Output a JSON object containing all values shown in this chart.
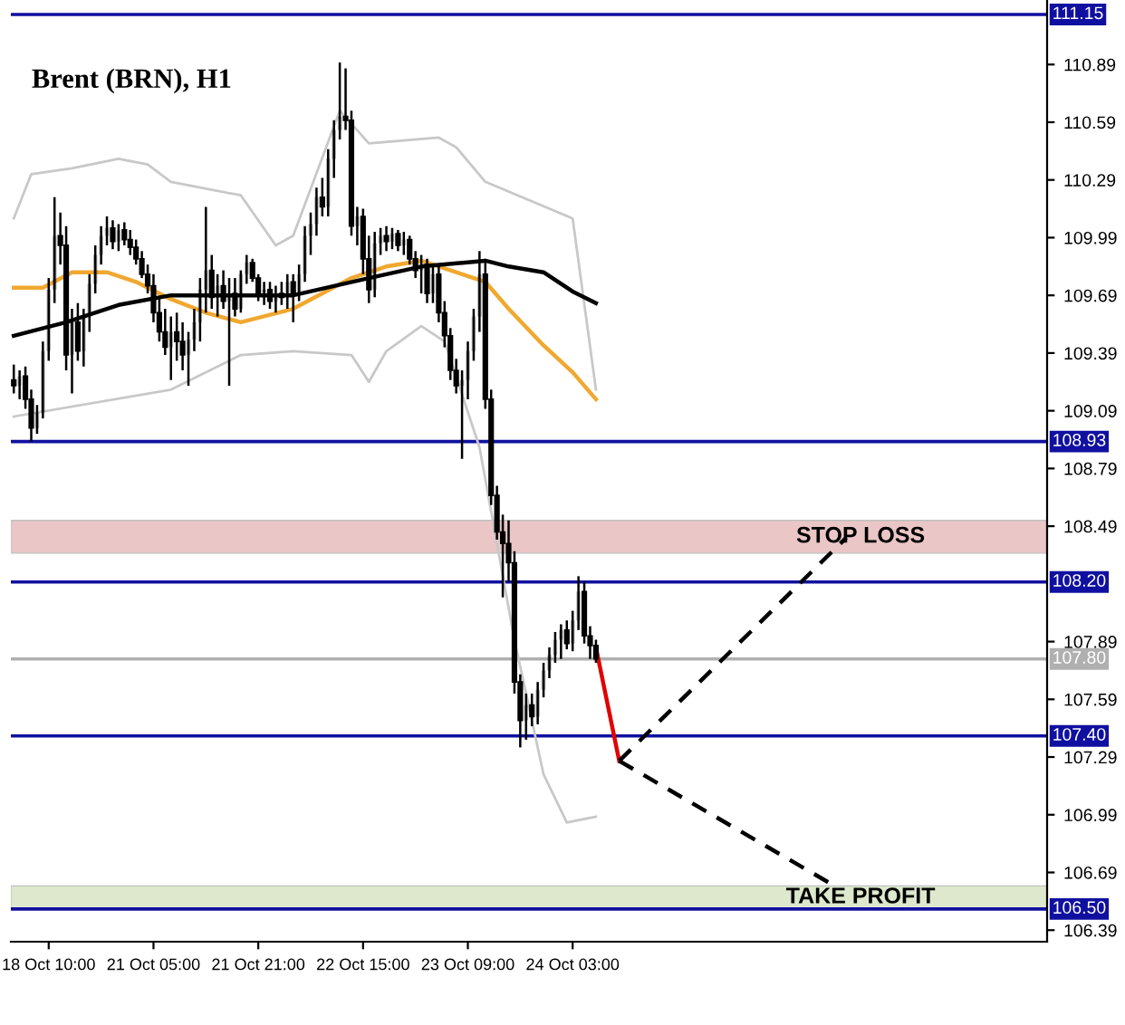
{
  "chart_data": {
    "type": "candlestick",
    "title": "Brent (BRN), H1",
    "categories": [
      null,
      null,
      null,
      null,
      null,
      null,
      "18 Oct 10:00",
      null,
      null,
      null,
      null,
      null,
      null,
      null,
      null,
      null,
      null,
      null,
      null,
      null,
      null,
      null,
      null,
      null,
      "21 Oct 05:00",
      null,
      null,
      null,
      null,
      null,
      null,
      null,
      null,
      null,
      null,
      null,
      null,
      null,
      null,
      null,
      null,
      null,
      "21 Oct 21:00",
      null,
      null,
      null,
      null,
      null,
      null,
      null,
      null,
      null,
      null,
      null,
      null,
      null,
      null,
      null,
      null,
      null,
      "22 Oct 15:00",
      null,
      null,
      null,
      null,
      null,
      null,
      null,
      null,
      null,
      null,
      null,
      null,
      null,
      null,
      null,
      null,
      null,
      "23 Oct 09:00",
      null,
      null,
      null,
      null,
      null,
      null,
      null,
      null,
      null,
      null,
      null,
      null,
      null,
      null,
      null,
      null,
      null,
      "24 Oct 03:00",
      null,
      null,
      null,
      null,
      null,
      null,
      null,
      null,
      null,
      null,
      null,
      null,
      null,
      null,
      null,
      null,
      null,
      null,
      null,
      null,
      null,
      null,
      null,
      null,
      null,
      null,
      null,
      null,
      null,
      null,
      null,
      null,
      null,
      null,
      null,
      null,
      null,
      null,
      null,
      null,
      null,
      null,
      null,
      null,
      null,
      null,
      null,
      null,
      null,
      null,
      null,
      null,
      null,
      null,
      null,
      null,
      null,
      null,
      null,
      null,
      null,
      null,
      null,
      null,
      null,
      null,
      null,
      null,
      null,
      null,
      null,
      null,
      null,
      null,
      null,
      null,
      null,
      null,
      null,
      null,
      null
    ],
    "ohlc": [
      [
        109.25,
        109.33,
        109.18,
        109.22
      ],
      [
        109.22,
        109.3,
        109.15,
        109.27
      ],
      [
        109.27,
        109.32,
        109.1,
        109.15
      ],
      [
        109.15,
        109.2,
        108.93,
        109.0
      ],
      [
        109.0,
        109.12,
        108.97,
        109.08
      ],
      [
        109.08,
        109.45,
        109.05,
        109.4
      ],
      [
        109.4,
        109.78,
        109.35,
        109.72
      ],
      [
        109.72,
        110.2,
        109.65,
        110.0
      ],
      [
        110.0,
        110.12,
        109.85,
        109.95
      ],
      [
        109.95,
        110.05,
        109.3,
        109.38
      ],
      [
        109.38,
        109.62,
        109.18,
        109.55
      ],
      [
        109.55,
        109.65,
        109.35,
        109.4
      ],
      [
        109.4,
        109.62,
        109.32,
        109.58
      ],
      [
        109.58,
        109.8,
        109.5,
        109.75
      ],
      [
        109.75,
        109.95,
        109.7,
        109.9
      ],
      [
        109.9,
        110.05,
        109.85,
        110.0
      ],
      [
        110.0,
        110.1,
        109.95,
        110.04
      ],
      [
        110.04,
        110.08,
        109.93,
        109.97
      ],
      [
        109.97,
        110.06,
        109.92,
        110.03
      ],
      [
        110.03,
        110.07,
        109.95,
        109.98
      ],
      [
        109.98,
        110.03,
        109.9,
        109.94
      ],
      [
        109.94,
        109.98,
        109.85,
        109.88
      ],
      [
        109.88,
        109.92,
        109.78,
        109.8
      ],
      [
        109.8,
        109.85,
        109.7,
        109.74
      ],
      [
        109.74,
        109.8,
        109.55,
        109.6
      ],
      [
        109.6,
        109.68,
        109.45,
        109.5
      ],
      [
        109.5,
        109.62,
        109.38,
        109.42
      ],
      [
        109.42,
        109.58,
        109.25,
        109.5
      ],
      [
        109.5,
        109.6,
        109.35,
        109.45
      ],
      [
        109.45,
        109.55,
        109.3,
        109.38
      ],
      [
        109.38,
        109.5,
        109.22,
        109.46
      ],
      [
        109.46,
        109.62,
        109.4,
        109.55
      ],
      [
        109.55,
        109.78,
        109.45,
        109.72
      ],
      [
        109.72,
        110.15,
        109.6,
        109.82
      ],
      [
        109.82,
        109.9,
        109.62,
        109.68
      ],
      [
        109.68,
        109.8,
        109.58,
        109.74
      ],
      [
        109.74,
        109.82,
        109.62,
        109.66
      ],
      [
        109.66,
        109.78,
        109.22,
        109.7
      ],
      [
        109.7,
        109.78,
        109.58,
        109.62
      ],
      [
        109.62,
        109.82,
        109.6,
        109.8
      ],
      [
        109.8,
        109.9,
        109.75,
        109.86
      ],
      [
        109.86,
        109.88,
        109.76,
        109.78
      ],
      [
        109.78,
        109.8,
        109.66,
        109.7
      ],
      [
        109.7,
        109.76,
        109.64,
        109.72
      ],
      [
        109.72,
        109.76,
        109.62,
        109.66
      ],
      [
        109.66,
        109.74,
        109.6,
        109.7
      ],
      [
        109.7,
        109.76,
        109.64,
        109.68
      ],
      [
        109.68,
        109.8,
        109.62,
        109.76
      ],
      [
        109.76,
        109.8,
        109.55,
        109.7
      ],
      [
        109.7,
        109.85,
        109.66,
        109.8
      ],
      [
        109.8,
        110.05,
        109.76,
        110.0
      ],
      [
        110.0,
        110.12,
        109.9,
        110.06
      ],
      [
        110.06,
        110.25,
        110.0,
        110.2
      ],
      [
        110.2,
        110.3,
        110.1,
        110.15
      ],
      [
        110.15,
        110.45,
        110.1,
        110.4
      ],
      [
        110.4,
        110.6,
        110.3,
        110.55
      ],
      [
        110.55,
        110.9,
        110.5,
        110.62
      ],
      [
        110.62,
        110.87,
        110.55,
        110.6
      ],
      [
        110.6,
        110.65,
        110.0,
        110.05
      ],
      [
        110.05,
        110.15,
        109.95,
        110.1
      ],
      [
        110.1,
        110.14,
        109.8,
        109.88
      ],
      [
        109.88,
        110.0,
        109.65,
        109.72
      ],
      [
        109.72,
        110.02,
        109.68,
        109.96
      ],
      [
        109.96,
        110.04,
        109.9,
        110.0
      ],
      [
        110.0,
        110.05,
        109.92,
        109.97
      ],
      [
        109.97,
        110.04,
        109.93,
        110.01
      ],
      [
        110.01,
        110.03,
        109.92,
        109.95
      ],
      [
        109.95,
        110.02,
        109.9,
        109.98
      ],
      [
        109.98,
        110.0,
        109.85,
        109.88
      ],
      [
        109.88,
        109.92,
        109.78,
        109.82
      ],
      [
        109.82,
        109.9,
        109.7,
        109.85
      ],
      [
        109.85,
        109.88,
        109.65,
        109.7
      ],
      [
        109.7,
        109.84,
        109.65,
        109.8
      ],
      [
        109.8,
        109.85,
        109.55,
        109.6
      ],
      [
        109.6,
        109.66,
        109.42,
        109.48
      ],
      [
        109.48,
        109.52,
        109.25,
        109.3
      ],
      [
        109.3,
        109.36,
        109.18,
        109.22
      ],
      [
        109.22,
        109.3,
        108.84,
        109.25
      ],
      [
        109.25,
        109.45,
        109.15,
        109.4
      ],
      [
        109.4,
        109.62,
        109.35,
        109.58
      ],
      [
        109.58,
        109.92,
        109.5,
        109.8
      ],
      [
        109.8,
        109.88,
        109.1,
        109.15
      ],
      [
        109.15,
        109.2,
        108.6,
        108.65
      ],
      [
        108.65,
        108.7,
        108.42,
        108.46
      ],
      [
        108.46,
        108.55,
        108.12,
        108.4
      ],
      [
        108.4,
        108.52,
        108.2,
        108.3
      ],
      [
        108.3,
        108.36,
        107.62,
        107.68
      ],
      [
        107.68,
        107.72,
        107.34,
        107.48
      ],
      [
        107.48,
        107.62,
        107.38,
        107.56
      ],
      [
        107.56,
        107.62,
        107.45,
        107.5
      ],
      [
        107.5,
        107.68,
        107.46,
        107.64
      ],
      [
        107.64,
        107.78,
        107.6,
        107.74
      ],
      [
        107.74,
        107.86,
        107.7,
        107.82
      ],
      [
        107.82,
        107.94,
        107.78,
        107.9
      ],
      [
        107.9,
        107.98,
        107.8,
        107.95
      ],
      [
        107.95,
        108.0,
        107.85,
        107.88
      ],
      [
        107.88,
        108.05,
        107.84,
        108.0
      ],
      [
        108.0,
        108.23,
        107.95,
        108.15
      ],
      [
        108.15,
        108.2,
        107.88,
        107.92
      ],
      [
        107.92,
        107.97,
        107.8,
        107.87
      ],
      [
        107.87,
        107.9,
        107.78,
        107.8
      ],
      null,
      null,
      null,
      null,
      null,
      null,
      null,
      null,
      null,
      null,
      null,
      null,
      null,
      null,
      null,
      null,
      null,
      null,
      null,
      null,
      null,
      null,
      null,
      null,
      null,
      null,
      null,
      null,
      null,
      null,
      null,
      null,
      null,
      null,
      null,
      null,
      null,
      null,
      null,
      null,
      null,
      null,
      null,
      null,
      null,
      null,
      null,
      null,
      null,
      null,
      null,
      null,
      null,
      null,
      null,
      null,
      null,
      null,
      null,
      null,
      null,
      null,
      null,
      null,
      null,
      null,
      null,
      null,
      null,
      null,
      null,
      null,
      null,
      null,
      null,
      null,
      null
    ],
    "color": "#000000",
    "series": [
      {
        "type": "line",
        "color": "#c8c8c8",
        "values": [
          110.09,
          null,
          null,
          110.32,
          null,
          null,
          null,
          null,
          null,
          null,
          110.35,
          null,
          null,
          null,
          null,
          null,
          null,
          null,
          110.4,
          null,
          null,
          null,
          null,
          110.37,
          null,
          null,
          null,
          110.28,
          null,
          null,
          null,
          null,
          null,
          null,
          null,
          null,
          null,
          null,
          null,
          110.21,
          null,
          null,
          null,
          null,
          null,
          109.95,
          null,
          null,
          110.0,
          null,
          null,
          null,
          null,
          null,
          null,
          null,
          110.65,
          null,
          null,
          null,
          null,
          110.48,
          null,
          null,
          null,
          null,
          null,
          null,
          null,
          null,
          null,
          null,
          null,
          110.51,
          null,
          null,
          110.46,
          null,
          null,
          null,
          null,
          110.28,
          null,
          null,
          null,
          null,
          null,
          null,
          null,
          null,
          null,
          null,
          null,
          null,
          null,
          null,
          110.09,
          null,
          null,
          null,
          109.2,
          null,
          null,
          null,
          null,
          null,
          null,
          null,
          null,
          null,
          null,
          null,
          null,
          null,
          null,
          null,
          null,
          null,
          null,
          null,
          null,
          null,
          null,
          null,
          null,
          null,
          null,
          null,
          null,
          null,
          null,
          null,
          null,
          null,
          null,
          null,
          null,
          null,
          null,
          null,
          null,
          null,
          null,
          null,
          null,
          null,
          null,
          null,
          null,
          null,
          null,
          null,
          null,
          null,
          null,
          null,
          null,
          null,
          null,
          null,
          null,
          null,
          null,
          null,
          null,
          null,
          null,
          null,
          null,
          null,
          null,
          null,
          null,
          null,
          null,
          null,
          null,
          null
        ]
      },
      {
        "type": "line",
        "color": "#c8c8c8",
        "values": [
          109.06,
          null,
          null,
          null,
          null,
          null,
          null,
          null,
          null,
          null,
          null,
          null,
          null,
          null,
          null,
          null,
          null,
          null,
          null,
          null,
          null,
          null,
          null,
          null,
          null,
          null,
          null,
          109.2,
          null,
          null,
          null,
          null,
          null,
          null,
          null,
          null,
          null,
          null,
          null,
          109.38,
          null,
          null,
          null,
          null,
          null,
          null,
          null,
          null,
          109.4,
          null,
          null,
          null,
          null,
          null,
          null,
          null,
          null,
          null,
          109.38,
          null,
          null,
          109.24,
          null,
          null,
          109.4,
          null,
          null,
          null,
          null,
          null,
          109.53,
          null,
          null,
          null,
          109.45,
          null,
          null,
          null,
          null,
          null,
          108.9,
          null,
          null,
          null,
          null,
          null,
          107.9,
          null,
          null,
          null,
          null,
          107.2,
          null,
          null,
          null,
          106.95,
          null,
          null,
          null,
          null,
          106.98,
          null,
          null,
          null,
          null,
          null,
          null,
          null,
          null,
          null,
          null,
          null,
          null,
          null,
          null,
          null,
          null,
          null,
          null,
          null,
          null,
          null,
          null,
          null,
          null,
          null,
          null,
          null,
          null,
          null,
          null,
          null,
          null,
          null,
          null,
          null,
          null,
          null,
          null,
          null,
          null,
          null,
          null,
          null,
          null,
          null,
          null,
          null,
          null,
          null,
          null,
          null,
          null,
          null,
          null,
          null,
          null,
          null,
          null,
          null,
          null,
          null,
          null,
          null,
          null,
          null,
          null,
          null,
          null,
          null,
          null,
          null,
          null,
          null,
          null,
          null,
          null,
          null
        ]
      },
      {
        "type": "line",
        "color": "#f0a830",
        "values": [
          109.73,
          null,
          null,
          null,
          null,
          109.73,
          null,
          null,
          null,
          null,
          109.81,
          null,
          null,
          null,
          null,
          null,
          109.81,
          null,
          null,
          null,
          null,
          109.76,
          null,
          null,
          null,
          null,
          null,
          109.67,
          null,
          null,
          null,
          null,
          null,
          109.6,
          null,
          null,
          null,
          null,
          null,
          109.55,
          null,
          null,
          null,
          null,
          null,
          null,
          null,
          null,
          109.62,
          null,
          null,
          null,
          null,
          null,
          null,
          null,
          null,
          null,
          109.78,
          null,
          null,
          null,
          null,
          null,
          109.84,
          null,
          null,
          null,
          null,
          null,
          109.87,
          null,
          null,
          null,
          null,
          null,
          109.81,
          null,
          null,
          null,
          null,
          109.76,
          null,
          null,
          null,
          109.62,
          null,
          null,
          null,
          null,
          null,
          109.43,
          null,
          null,
          null,
          null,
          109.29,
          null,
          null,
          null,
          109.15,
          null,
          null,
          null,
          null,
          null,
          null,
          null,
          null,
          null,
          null,
          null,
          null,
          null,
          null,
          null,
          null,
          null,
          null,
          null,
          null,
          null,
          null,
          null,
          null,
          null,
          null,
          null,
          null,
          null,
          null,
          null,
          null,
          null,
          null,
          null,
          null,
          null,
          null,
          null,
          null,
          null,
          null,
          null,
          null,
          null,
          null,
          null,
          null,
          null,
          null,
          null,
          null,
          null,
          null,
          null,
          null,
          null,
          null,
          null,
          null,
          null,
          null,
          null,
          null,
          null,
          null,
          null,
          null,
          null,
          null,
          null,
          null,
          null,
          null,
          null,
          null,
          null
        ]
      },
      {
        "type": "line",
        "color": "#000000",
        "values": [
          109.48,
          null,
          null,
          null,
          null,
          null,
          null,
          null,
          null,
          109.55,
          null,
          null,
          null,
          null,
          null,
          null,
          null,
          null,
          109.64,
          null,
          null,
          null,
          null,
          null,
          null,
          null,
          null,
          109.69,
          null,
          null,
          null,
          null,
          null,
          null,
          null,
          null,
          null,
          null,
          null,
          109.69,
          null,
          null,
          null,
          null,
          null,
          null,
          null,
          null,
          109.69,
          null,
          null,
          null,
          null,
          null,
          null,
          null,
          null,
          null,
          null,
          null,
          null,
          109.78,
          null,
          null,
          null,
          null,
          null,
          null,
          null,
          null,
          109.84,
          null,
          null,
          null,
          null,
          null,
          null,
          null,
          null,
          null,
          null,
          109.87,
          null,
          null,
          null,
          109.84,
          null,
          null,
          null,
          null,
          null,
          109.81,
          null,
          null,
          null,
          null,
          109.71,
          null,
          null,
          null,
          109.65,
          null,
          null,
          null,
          null,
          null,
          null,
          null,
          null,
          null,
          null,
          null,
          null,
          null,
          null,
          null,
          null,
          null,
          null,
          null,
          null,
          null,
          null,
          null,
          null,
          null,
          null,
          null,
          null,
          null,
          null,
          null,
          null,
          null,
          null,
          null,
          null,
          null,
          null,
          null,
          null,
          null,
          null,
          null,
          null,
          null,
          null,
          null,
          null,
          null,
          null,
          null,
          null,
          null,
          null,
          null,
          null,
          null,
          null,
          null,
          null,
          null,
          null,
          null,
          null,
          null,
          null,
          null,
          null,
          null,
          null,
          null,
          null,
          null,
          null,
          null,
          null,
          null
        ]
      },
      {
        "type": "line",
        "color": "#e00000",
        "values": [
          null,
          null,
          null,
          null,
          null,
          null,
          null,
          null,
          null,
          null,
          null,
          null,
          null,
          null,
          null,
          null,
          null,
          null,
          null,
          null,
          null,
          null,
          null,
          null,
          null,
          null,
          null,
          null,
          null,
          null,
          null,
          null,
          null,
          null,
          null,
          null,
          null,
          null,
          null,
          null,
          null,
          null,
          null,
          null,
          null,
          null,
          null,
          null,
          null,
          null,
          null,
          null,
          null,
          null,
          null,
          null,
          null,
          null,
          null,
          null,
          null,
          null,
          null,
          null,
          null,
          null,
          null,
          null,
          null,
          null,
          null,
          null,
          null,
          null,
          null,
          null,
          null,
          null,
          null,
          null,
          null,
          null,
          null,
          null,
          null,
          null,
          null,
          null,
          null,
          null,
          null,
          null,
          null,
          null,
          null,
          null,
          null,
          null,
          null,
          null,
          107.86,
          null,
          null,
          null,
          107.27,
          null,
          null,
          null,
          null,
          null,
          null,
          null,
          null,
          null,
          null,
          null,
          null,
          null,
          null,
          null,
          null,
          null,
          null,
          null,
          null,
          null,
          null,
          null,
          null,
          null,
          null,
          null,
          null,
          null,
          null,
          null,
          null,
          null,
          null,
          null,
          null,
          null,
          null,
          null,
          null,
          null,
          null,
          null,
          null,
          null,
          null,
          null,
          null,
          null,
          null,
          null,
          null,
          null,
          null,
          null,
          null,
          null,
          null,
          null,
          null,
          null,
          null,
          null,
          null,
          null,
          null,
          null,
          null,
          null,
          null,
          null,
          null,
          null
        ]
      },
      {
        "type": "line",
        "color": "#000000",
        "line_style": "dashed",
        "values": [
          null,
          null,
          null,
          null,
          null,
          null,
          null,
          null,
          null,
          null,
          null,
          null,
          null,
          null,
          null,
          null,
          null,
          null,
          null,
          null,
          null,
          null,
          null,
          null,
          null,
          null,
          null,
          null,
          null,
          null,
          null,
          null,
          null,
          null,
          null,
          null,
          null,
          null,
          null,
          null,
          null,
          null,
          null,
          null,
          null,
          null,
          null,
          null,
          null,
          null,
          null,
          null,
          null,
          null,
          null,
          null,
          null,
          null,
          null,
          null,
          null,
          null,
          null,
          null,
          null,
          null,
          null,
          null,
          null,
          null,
          null,
          null,
          null,
          null,
          null,
          null,
          null,
          null,
          null,
          null,
          null,
          null,
          null,
          null,
          null,
          null,
          null,
          null,
          null,
          null,
          null,
          null,
          null,
          null,
          null,
          null,
          null,
          null,
          null,
          null,
          null,
          null,
          null,
          null,
          107.27,
          null,
          null,
          null,
          null,
          null,
          null,
          null,
          null,
          null,
          null,
          null,
          null,
          null,
          null,
          null,
          null,
          null,
          null,
          null,
          null,
          null,
          null,
          null,
          null,
          null,
          null,
          null,
          null,
          null,
          null,
          null,
          null,
          null,
          null,
          null,
          null,
          null,
          null,
          108.43,
          null,
          null,
          null,
          null,
          null,
          null,
          null,
          null,
          null,
          null,
          null,
          null,
          null,
          null,
          null,
          null,
          null,
          null,
          null,
          null,
          null,
          null,
          null,
          null,
          null,
          null,
          null,
          null,
          null,
          null,
          null,
          null,
          null,
          null
        ]
      },
      {
        "type": "line",
        "color": "#000000",
        "line_style": "dashed",
        "values": [
          null,
          null,
          null,
          null,
          null,
          null,
          null,
          null,
          null,
          null,
          null,
          null,
          null,
          null,
          null,
          null,
          null,
          null,
          null,
          null,
          null,
          null,
          null,
          null,
          null,
          null,
          null,
          null,
          null,
          null,
          null,
          null,
          null,
          null,
          null,
          null,
          null,
          null,
          null,
          null,
          null,
          null,
          null,
          null,
          null,
          null,
          null,
          null,
          null,
          null,
          null,
          null,
          null,
          null,
          null,
          null,
          null,
          null,
          null,
          null,
          null,
          null,
          null,
          null,
          null,
          null,
          null,
          null,
          null,
          null,
          null,
          null,
          null,
          null,
          null,
          null,
          null,
          null,
          null,
          null,
          null,
          null,
          null,
          null,
          null,
          null,
          null,
          null,
          null,
          null,
          null,
          null,
          null,
          null,
          null,
          null,
          null,
          null,
          null,
          null,
          null,
          null,
          null,
          null,
          107.27,
          null,
          null,
          null,
          null,
          null,
          null,
          null,
          null,
          null,
          null,
          null,
          null,
          null,
          null,
          null,
          null,
          null,
          null,
          null,
          null,
          null,
          null,
          null,
          null,
          null,
          null,
          null,
          null,
          null,
          null,
          null,
          null,
          null,
          null,
          null,
          null,
          106.62,
          null,
          null,
          null,
          null,
          null,
          null,
          null,
          null,
          null,
          null,
          null,
          null,
          null,
          null,
          null,
          null,
          null,
          null,
          null,
          null,
          null,
          null,
          null,
          null,
          null,
          null,
          null,
          null,
          null,
          null,
          null,
          null,
          null,
          null,
          null,
          null
        ]
      }
    ],
    "ylim": [
      106.33,
      111.22
    ],
    "yticks": [
      110.89,
      110.59,
      110.29,
      109.99,
      109.69,
      109.39,
      109.09,
      108.79,
      108.49,
      107.89,
      107.59,
      107.29,
      106.99,
      106.69,
      106.39
    ],
    "ref_lines": [
      {
        "axis": "y",
        "value": 111.15,
        "label": "111.15",
        "color": "#1010a0"
      },
      {
        "axis": "y",
        "value": 108.93,
        "label": "108.93",
        "color": "#1010a0"
      },
      {
        "axis": "y",
        "value": 108.2,
        "label": "108.20",
        "color": "#1010a0"
      },
      {
        "axis": "y",
        "value": 107.8,
        "label": "107.80",
        "color": "#b0b0b0"
      },
      {
        "axis": "y",
        "value": 107.4,
        "label": "107.40",
        "color": "#1010a0"
      },
      {
        "axis": "y",
        "value": 106.5,
        "label": "106.50",
        "color": "#1010a0"
      }
    ],
    "bands": [
      {
        "axis": "y",
        "from": 108.35,
        "to": 108.52,
        "label": "STOP LOSS",
        "color": "#eac6c6"
      },
      {
        "axis": "y",
        "from": 106.5,
        "to": 106.62,
        "label": "TAKE PROFIT",
        "color": "#dde8cc"
      }
    ]
  }
}
